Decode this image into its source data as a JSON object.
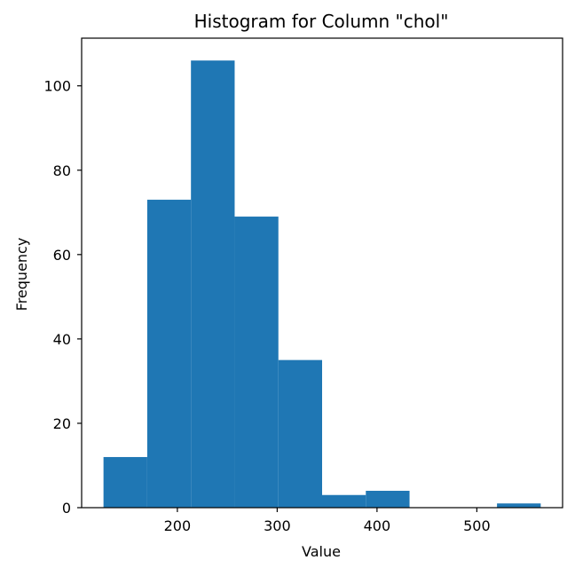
{
  "chart_data": {
    "type": "bar",
    "subtype": "histogram",
    "title": "Histogram for Column \"chol\"",
    "xlabel": "Value",
    "ylabel": "Frequency",
    "bins": [
      {
        "x0": 126.0,
        "x1": 169.8,
        "count": 12
      },
      {
        "x0": 169.8,
        "x1": 213.6,
        "count": 73
      },
      {
        "x0": 213.6,
        "x1": 257.4,
        "count": 106
      },
      {
        "x0": 257.4,
        "x1": 301.2,
        "count": 69
      },
      {
        "x0": 301.2,
        "x1": 345.0,
        "count": 35
      },
      {
        "x0": 345.0,
        "x1": 388.8,
        "count": 3
      },
      {
        "x0": 388.8,
        "x1": 432.6,
        "count": 4
      },
      {
        "x0": 432.6,
        "x1": 476.4,
        "count": 0
      },
      {
        "x0": 476.4,
        "x1": 520.2,
        "count": 0
      },
      {
        "x0": 520.2,
        "x1": 564.0,
        "count": 1
      }
    ],
    "xlim": [
      104.1,
      585.9
    ],
    "ylim": [
      0,
      111.3
    ],
    "xticks": [
      200,
      300,
      400,
      500
    ],
    "yticks": [
      0,
      20,
      40,
      60,
      80,
      100
    ],
    "bar_color": "#1f77b4",
    "grid": false,
    "legend": "none"
  }
}
